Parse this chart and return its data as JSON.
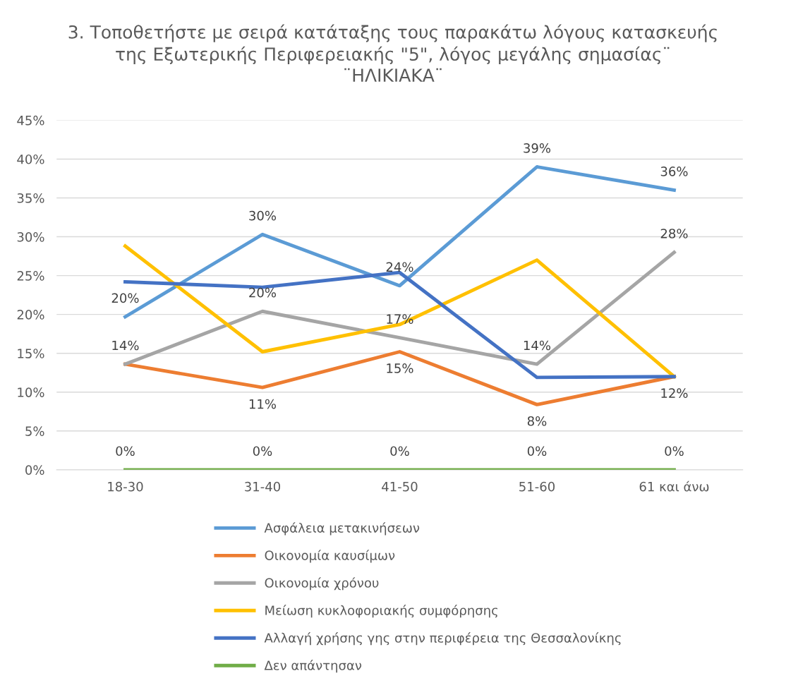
{
  "chart_data": {
    "type": "line",
    "title": "3. Τοποθετήστε με σειρά κατάταξης τους παρακάτω λόγους κατασκευής\nτης Εξωτερικής Περιφερειακής \"5\", λόγος μεγάλης σημασίας¨\n¨ΗΛΙΚΙΑΚΑ¨",
    "categories": [
      "18-30",
      "31-40",
      "41-50",
      "51-60",
      "61 και άνω"
    ],
    "series": [
      {
        "name": "Ασφάλεια μετακινήσεων",
        "color": "#5b9bd5",
        "values": [
          19.7,
          30.3,
          23.7,
          39.0,
          36.0
        ],
        "value_labels": [
          "20%",
          "30%",
          "24%",
          "39%",
          "36%"
        ]
      },
      {
        "name": "Οικονομία καυσίμων",
        "color": "#ed7d31",
        "values": [
          13.6,
          10.6,
          15.2,
          8.4,
          12.0
        ],
        "value_labels": [
          null,
          "11%",
          "15%",
          "8%",
          "12%"
        ]
      },
      {
        "name": "Οικονομία χρόνου",
        "color": "#a5a5a5",
        "values": [
          13.6,
          20.4,
          17.0,
          13.6,
          28.0
        ],
        "value_labels": [
          "14%",
          "20%",
          "17%",
          "14%",
          "28%"
        ]
      },
      {
        "name": "Μείωση κυκλοφοριακής συμφόρησης",
        "color": "#ffc000",
        "values": [
          28.8,
          15.2,
          18.7,
          27.0,
          12.0
        ]
      },
      {
        "name": "Αλλαγή χρήσης γης στην περιφέρεια της Θεσσαλονίκης",
        "color": "#4472c4",
        "values": [
          24.2,
          23.5,
          25.4,
          11.9,
          12.0
        ]
      },
      {
        "name": "Δεν απάντησαν",
        "color": "#70ad47",
        "values": [
          0,
          0,
          0,
          0,
          0
        ],
        "value_labels": [
          "0%",
          "0%",
          "0%",
          "0%",
          "0%"
        ]
      }
    ],
    "ylim": [
      0,
      45
    ],
    "yticks": [
      {
        "value": 0,
        "label": "0%"
      },
      {
        "value": 5,
        "label": "5%"
      },
      {
        "value": 10,
        "label": "10%"
      },
      {
        "value": 15,
        "label": "15%"
      },
      {
        "value": 20,
        "label": "20%"
      },
      {
        "value": 25,
        "label": "25%"
      },
      {
        "value": 30,
        "label": "30%"
      },
      {
        "value": 35,
        "label": "35%"
      },
      {
        "value": 40,
        "label": "40%"
      },
      {
        "value": 45,
        "label": "45%"
      }
    ],
    "grid": "y",
    "legend": "bottom",
    "marker": "none",
    "line_style": "solid"
  }
}
